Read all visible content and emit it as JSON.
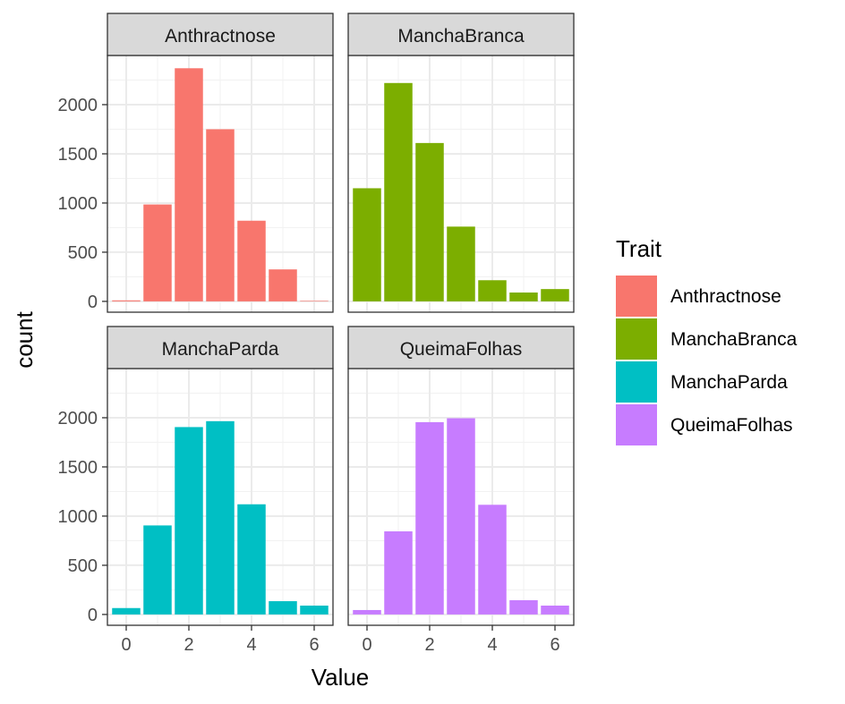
{
  "chart_data": {
    "type": "bar",
    "facet_layout": "2x2 grid",
    "xlabel": "Value",
    "ylabel": "count",
    "xlim": [
      -0.6,
      6.6
    ],
    "ylim": [
      -110,
      2500
    ],
    "x_ticks": [
      0,
      2,
      4,
      6
    ],
    "y_ticks": [
      0,
      500,
      1000,
      1500,
      2000
    ],
    "grid": true,
    "legend": {
      "title": "Trait",
      "placement": "right",
      "entries": [
        {
          "name": "Anthractnose",
          "color": "#F8766D"
        },
        {
          "name": "ManchaBranca",
          "color": "#7CAE00"
        },
        {
          "name": "ManchaParda",
          "color": "#00BFC4"
        },
        {
          "name": "QueimaFolhas",
          "color": "#C77CFF"
        }
      ]
    },
    "categories": [
      0,
      1,
      2,
      3,
      4,
      5,
      6
    ],
    "series": [
      {
        "name": "Anthractnose",
        "color": "#F8766D",
        "values": [
          10,
          985,
          2370,
          1750,
          820,
          325,
          5
        ]
      },
      {
        "name": "ManchaBranca",
        "color": "#7CAE00",
        "values": [
          1150,
          2220,
          1610,
          760,
          215,
          90,
          125
        ]
      },
      {
        "name": "ManchaParda",
        "color": "#00BFC4",
        "values": [
          65,
          905,
          1905,
          1965,
          1120,
          135,
          90
        ]
      },
      {
        "name": "QueimaFolhas",
        "color": "#C77CFF",
        "values": [
          45,
          845,
          1955,
          1995,
          1115,
          145,
          90
        ]
      }
    ]
  }
}
